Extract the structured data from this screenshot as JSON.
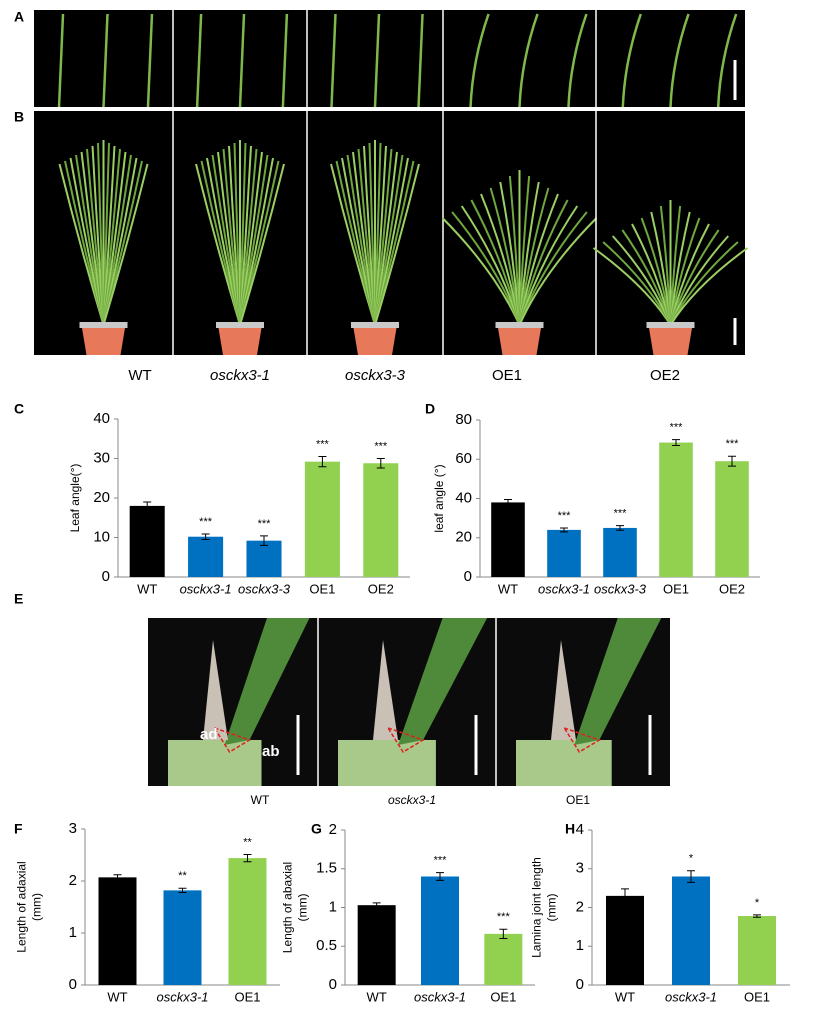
{
  "panel_labels": [
    "A",
    "B",
    "E"
  ],
  "photo_b_labels": [
    {
      "text": "WT",
      "italic": false
    },
    {
      "text": "osckx3-1",
      "italic": true
    },
    {
      "text": "osckx3-3",
      "italic": true
    },
    {
      "text": "OE1",
      "italic": false
    },
    {
      "text": "OE2",
      "italic": false
    }
  ],
  "photo_e_labels": [
    {
      "text": "WT",
      "italic": false
    },
    {
      "text": "osckx3-1",
      "italic": true
    },
    {
      "text": "OE1",
      "italic": false
    }
  ],
  "photo_e_annotations": [
    "ad",
    "ab"
  ],
  "chart_data": [
    {
      "type": "bar",
      "panel": "C",
      "ylabel": [
        "Leaf angle(°)"
      ],
      "categories": [
        "WT",
        "osckx3-1",
        "osckx3-3",
        "OE1",
        "OE2"
      ],
      "italic": [
        false,
        true,
        true,
        false,
        false
      ],
      "values": [
        18,
        10.2,
        9.2,
        29.2,
        28.8
      ],
      "errors": [
        1,
        0.7,
        1.2,
        1.3,
        1.2
      ],
      "significance": [
        null,
        "***",
        "***",
        "***",
        "***"
      ],
      "colors": [
        "#000000",
        "#0070c0",
        "#0070c0",
        "#92d050",
        "#92d050"
      ],
      "ylim": [
        0,
        40
      ],
      "yticks": [
        0,
        10,
        20,
        30,
        40
      ]
    },
    {
      "type": "bar",
      "panel": "D",
      "ylabel": [
        "leaf angle (°)"
      ],
      "categories": [
        "WT",
        "osckx3-1",
        "osckx3-3",
        "OE1",
        "OE2"
      ],
      "italic": [
        false,
        true,
        true,
        false,
        false
      ],
      "values": [
        38,
        24,
        25,
        68.5,
        59
      ],
      "errors": [
        1.5,
        1,
        1.2,
        1.5,
        2.5
      ],
      "significance": [
        null,
        "***",
        "***",
        "***",
        "***"
      ],
      "colors": [
        "#000000",
        "#0070c0",
        "#0070c0",
        "#92d050",
        "#92d050"
      ],
      "ylim": [
        0,
        80
      ],
      "yticks": [
        0,
        20,
        40,
        60,
        80
      ]
    },
    {
      "type": "bar",
      "panel": "F",
      "ylabel": [
        "Length of adaxial",
        "(mm)"
      ],
      "categories": [
        "WT",
        "osckx3-1",
        "OE1"
      ],
      "italic": [
        false,
        true,
        false
      ],
      "values": [
        2.07,
        1.82,
        2.44
      ],
      "errors": [
        0.05,
        0.04,
        0.07
      ],
      "significance": [
        null,
        "**",
        "**"
      ],
      "colors": [
        "#000000",
        "#0070c0",
        "#92d050"
      ],
      "ylim": [
        0,
        3
      ],
      "yticks": [
        0,
        1,
        2,
        3
      ]
    },
    {
      "type": "bar",
      "panel": "G",
      "ylabel": [
        "Length of abaxial",
        "(mm)"
      ],
      "categories": [
        "WT",
        "osckx3-1",
        "OE1"
      ],
      "italic": [
        false,
        true,
        false
      ],
      "values": [
        1.03,
        1.4,
        0.66
      ],
      "errors": [
        0.03,
        0.05,
        0.06
      ],
      "significance": [
        null,
        "***",
        "***"
      ],
      "colors": [
        "#000000",
        "#0070c0",
        "#92d050"
      ],
      "ylim": [
        0,
        2
      ],
      "yticks": [
        0,
        0.5,
        1,
        1.5,
        2
      ]
    },
    {
      "type": "bar",
      "panel": "H",
      "ylabel": [
        "Lamina joint length",
        "(mm)"
      ],
      "categories": [
        "WT",
        "osckx3-1",
        "OE1"
      ],
      "italic": [
        false,
        true,
        false
      ],
      "values": [
        2.3,
        2.8,
        1.78
      ],
      "errors": [
        0.18,
        0.15,
        0.03
      ],
      "significance": [
        null,
        "*",
        "*"
      ],
      "colors": [
        "#000000",
        "#0070c0",
        "#92d050"
      ],
      "ylim": [
        0,
        4
      ],
      "yticks": [
        0,
        1,
        2,
        3,
        4
      ]
    }
  ]
}
